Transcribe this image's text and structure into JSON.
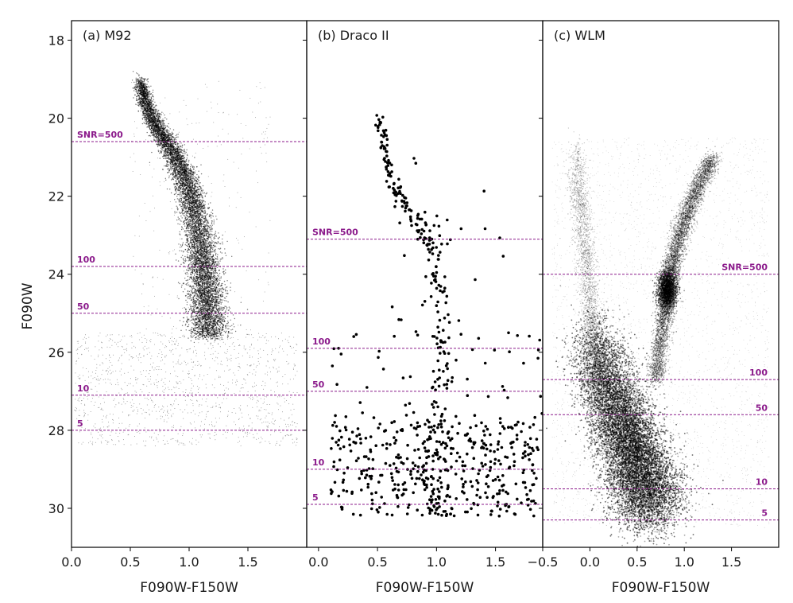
{
  "chart_data": [
    {
      "type": "scatter",
      "title": "(a) M92",
      "xlabel": "F090W-F150W",
      "ylabel": "F090W",
      "xlim": [
        0.0,
        2.0
      ],
      "ylim": [
        31.0,
        17.5
      ],
      "x_ticks": [
        "0.0",
        "0.5",
        "1.0",
        "1.5"
      ],
      "y_ticks": [
        "18",
        "20",
        "22",
        "24",
        "26",
        "28",
        "30"
      ],
      "snr_lines": [
        {
          "label": "SNR=500",
          "mag": 20.6
        },
        {
          "label": "100",
          "mag": 23.8
        },
        {
          "label": "50",
          "mag": 25.0
        },
        {
          "label": "10",
          "mag": 27.1
        },
        {
          "label": "5",
          "mag": 28.0
        }
      ],
      "sequence": {
        "description": "dense ridge",
        "ridge": [
          [
            0.58,
            19.0
          ],
          [
            0.63,
            19.6
          ],
          [
            0.72,
            20.2
          ],
          [
            0.85,
            20.8
          ],
          [
            0.96,
            21.5
          ],
          [
            1.04,
            22.3
          ],
          [
            1.1,
            23.2
          ],
          [
            1.13,
            24.0
          ],
          [
            1.15,
            24.8
          ],
          [
            1.17,
            25.6
          ]
        ]
      }
    },
    {
      "type": "scatter",
      "title": "(b) Draco II",
      "xlabel": "F090W-F150W",
      "ylabel": "",
      "xlim": [
        -0.1,
        1.9
      ],
      "ylim": [
        31.0,
        17.5
      ],
      "x_ticks": [
        "0.0",
        "0.5",
        "1.0",
        "1.5"
      ],
      "y_ticks": [
        "18",
        "20",
        "22",
        "24",
        "26",
        "28",
        "30"
      ],
      "snr_lines": [
        {
          "label": "SNR=500",
          "mag": 23.1
        },
        {
          "label": "100",
          "mag": 25.9
        },
        {
          "label": "50",
          "mag": 27.0
        },
        {
          "label": "10",
          "mag": 29.0
        },
        {
          "label": "5",
          "mag": 29.9
        }
      ],
      "sequence": {
        "ridge": [
          [
            0.52,
            20.0
          ],
          [
            0.55,
            20.8
          ],
          [
            0.62,
            21.6
          ],
          [
            0.72,
            22.2
          ],
          [
            0.88,
            22.8
          ],
          [
            0.98,
            23.4
          ],
          [
            1.02,
            24.5
          ],
          [
            1.04,
            25.8
          ],
          [
            1.03,
            27.0
          ],
          [
            1.0,
            28.2
          ],
          [
            0.98,
            29.4
          ],
          [
            1.0,
            30.1
          ]
        ]
      }
    },
    {
      "type": "scatter",
      "title": "(c) WLM",
      "xlabel": "F090W-F150W",
      "ylabel": "",
      "xlim": [
        -0.5,
        2.0
      ],
      "ylim": [
        31.0,
        17.5
      ],
      "x_ticks": [
        "−0.5",
        "0.0",
        "0.5",
        "1.0",
        "1.5"
      ],
      "y_ticks": [
        "18",
        "20",
        "22",
        "24",
        "26",
        "28",
        "30"
      ],
      "snr_lines": [
        {
          "label": "SNR=500",
          "mag": 24.0
        },
        {
          "label": "100",
          "mag": 26.7
        },
        {
          "label": "50",
          "mag": 27.6
        },
        {
          "label": "10",
          "mag": 29.5
        },
        {
          "label": "5",
          "mag": 30.3
        }
      ],
      "sequence": {
        "main_sequence": [
          [
            0.0,
            25.5
          ],
          [
            0.15,
            26.5
          ],
          [
            0.3,
            27.5
          ],
          [
            0.42,
            28.3
          ],
          [
            0.55,
            29.2
          ],
          [
            0.65,
            30.0
          ]
        ],
        "red_giant_branch": [
          [
            0.7,
            26.7
          ],
          [
            0.78,
            25.2
          ],
          [
            0.85,
            24.0
          ],
          [
            0.95,
            23.0
          ],
          [
            1.1,
            22.0
          ],
          [
            1.3,
            21.0
          ]
        ],
        "red_clump": [
          0.82,
          24.4
        ]
      }
    }
  ]
}
